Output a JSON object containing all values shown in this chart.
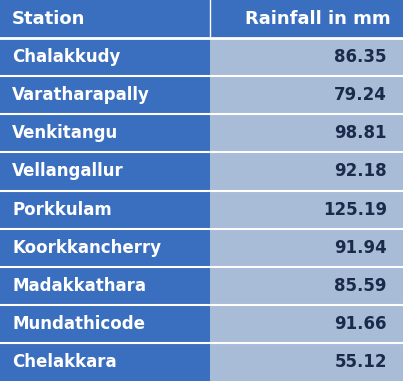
{
  "header": [
    "Station",
    "Rainfall in mm"
  ],
  "rows": [
    [
      "Chalakkudy",
      "86.35"
    ],
    [
      "Varatharapally",
      "79.24"
    ],
    [
      "Venkitangu",
      "98.81"
    ],
    [
      "Vellangallur",
      "92.18"
    ],
    [
      "Porkkulam",
      "125.19"
    ],
    [
      "Koorkkancherry",
      "91.94"
    ],
    [
      "Madakkathara",
      "85.59"
    ],
    [
      "Mundathicode",
      "91.66"
    ],
    [
      "Chelakkara",
      "55.12"
    ]
  ],
  "header_bg": "#3A6EBF",
  "header_text": "#FFFFFF",
  "row_left_bg": "#3A6EBF",
  "row_right_bg": "#A8BCD8",
  "row_text_white": "#FFFFFF",
  "row_text_dark": "#1A2A4A",
  "divider_color": "#FFFFFF",
  "fig_bg": "#FFFFFF",
  "col_split": 0.52,
  "font_size_header": 13,
  "font_size_row": 12
}
